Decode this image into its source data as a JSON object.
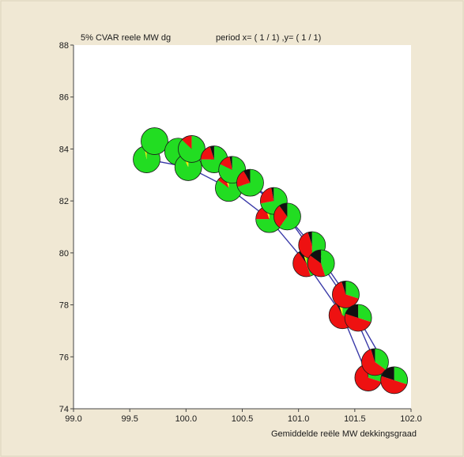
{
  "chart_data": {
    "type": "scatter",
    "title": "5% CVAR reele MW dg",
    "subtitle": "period x= ( 1 / 1) ,y= ( 1 / 1)",
    "xlabel": "Gemiddelde reële MW dekkingsgraad",
    "ylabel": "",
    "xlim": [
      99.0,
      102.0
    ],
    "ylim": [
      74,
      88
    ],
    "x_ticks": [
      "99.0",
      "99.5",
      "100.0",
      "100.5",
      "101.0",
      "101.5",
      "102.0"
    ],
    "y_ticks": [
      "74",
      "76",
      "78",
      "80",
      "82",
      "84",
      "86",
      "88"
    ],
    "grid": false,
    "marker_colors": [
      "#22dd22",
      "#ee1111",
      "#111111",
      "#ffee00"
    ],
    "series": [
      {
        "x": [
          99.65,
          100.02,
          100.38,
          100.74,
          101.07,
          101.39,
          101.62
        ],
        "y": [
          83.6,
          83.3,
          82.5,
          81.3,
          79.6,
          77.6,
          75.2
        ]
      },
      {
        "x": [
          99.72,
          100.05,
          100.41,
          100.78,
          101.12,
          101.42,
          101.68
        ],
        "y": [
          84.3,
          84.0,
          83.2,
          82.0,
          80.3,
          78.4,
          75.8
        ]
      },
      {
        "x": [
          99.93,
          100.25,
          100.57,
          100.9,
          101.2,
          101.53,
          101.85
        ],
        "y": [
          83.9,
          83.6,
          82.7,
          81.4,
          79.6,
          77.5,
          75.1
        ]
      }
    ],
    "markers": [
      {
        "x": 99.65,
        "y": 83.6,
        "shares": [
          0.97,
          0.0,
          0.0,
          0.03
        ]
      },
      {
        "x": 99.72,
        "y": 84.3,
        "shares": [
          1.0,
          0.0,
          0.0,
          0.0
        ]
      },
      {
        "x": 99.93,
        "y": 83.9,
        "shares": [
          1.0,
          0.0,
          0.0,
          0.0
        ]
      },
      {
        "x": 100.02,
        "y": 83.3,
        "shares": [
          0.93,
          0.0,
          0.0,
          0.07
        ]
      },
      {
        "x": 100.05,
        "y": 84.0,
        "shares": [
          0.87,
          0.13,
          0.0,
          0.0
        ]
      },
      {
        "x": 100.25,
        "y": 83.6,
        "shares": [
          0.75,
          0.2,
          0.05,
          0.0
        ]
      },
      {
        "x": 100.38,
        "y": 82.5,
        "shares": [
          0.85,
          0.1,
          0.0,
          0.05
        ]
      },
      {
        "x": 100.41,
        "y": 83.2,
        "shares": [
          0.82,
          0.15,
          0.03,
          0.0
        ]
      },
      {
        "x": 100.57,
        "y": 82.7,
        "shares": [
          0.7,
          0.22,
          0.08,
          0.0
        ]
      },
      {
        "x": 100.74,
        "y": 81.3,
        "shares": [
          0.75,
          0.2,
          0.0,
          0.05
        ]
      },
      {
        "x": 100.78,
        "y": 82.0,
        "shares": [
          0.72,
          0.25,
          0.03,
          0.0
        ]
      },
      {
        "x": 100.9,
        "y": 81.4,
        "shares": [
          0.6,
          0.3,
          0.1,
          0.0
        ]
      },
      {
        "x": 101.07,
        "y": 79.6,
        "shares": [
          0.45,
          0.45,
          0.05,
          0.05
        ]
      },
      {
        "x": 101.12,
        "y": 80.3,
        "shares": [
          0.5,
          0.45,
          0.05,
          0.0
        ]
      },
      {
        "x": 101.2,
        "y": 79.6,
        "shares": [
          0.45,
          0.4,
          0.15,
          0.0
        ]
      },
      {
        "x": 101.39,
        "y": 77.6,
        "shares": [
          0.3,
          0.62,
          0.03,
          0.05
        ]
      },
      {
        "x": 101.42,
        "y": 78.4,
        "shares": [
          0.3,
          0.65,
          0.05,
          0.0
        ]
      },
      {
        "x": 101.53,
        "y": 77.5,
        "shares": [
          0.3,
          0.5,
          0.2,
          0.0
        ]
      },
      {
        "x": 101.62,
        "y": 75.2,
        "shares": [
          0.3,
          0.67,
          0.03,
          0.0
        ]
      },
      {
        "x": 101.68,
        "y": 75.8,
        "shares": [
          0.35,
          0.6,
          0.05,
          0.0
        ]
      },
      {
        "x": 101.85,
        "y": 75.1,
        "shares": [
          0.3,
          0.5,
          0.2,
          0.0
        ]
      }
    ]
  }
}
